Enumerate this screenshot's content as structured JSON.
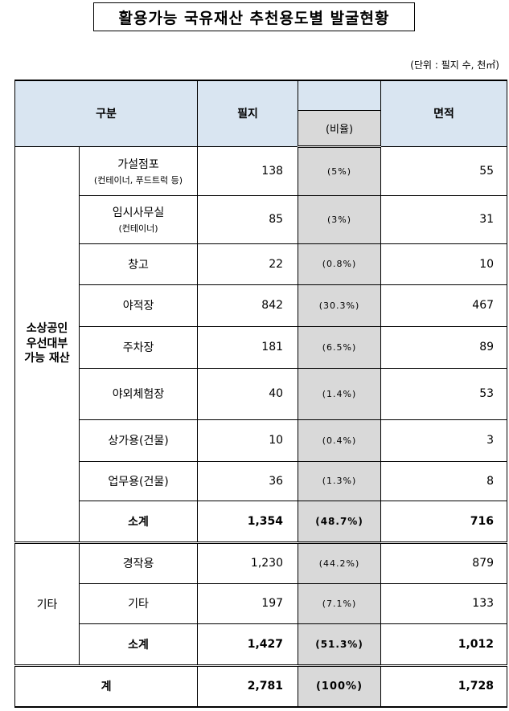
{
  "title": "활용가능 국유재산 추천용도별 발굴현황",
  "unit_note": "(단위 : 필지 수, 천㎡)",
  "headers": {
    "category": "구분",
    "parcels": "필지",
    "ratio": "(비율)",
    "area": "면적"
  },
  "groups": [
    {
      "name": "소상공인 우선대부 가능 재산",
      "name_lines": [
        "소상공인",
        "우선대부",
        "가능 재산"
      ],
      "rows": [
        {
          "label": "가설점포",
          "sublabel": "(컨테이너, 푸드트럭 등)",
          "parcels": "138",
          "ratio": "(5%)",
          "area": "55"
        },
        {
          "label": "임시사무실",
          "sublabel": "(컨테이너)",
          "parcels": "85",
          "ratio": "(3%)",
          "area": "31"
        },
        {
          "label": "창고",
          "sublabel": "",
          "parcels": "22",
          "ratio": "(0.8%)",
          "area": "10"
        },
        {
          "label": "야적장",
          "sublabel": "",
          "parcels": "842",
          "ratio": "(30.3%)",
          "area": "467"
        },
        {
          "label": "주차장",
          "sublabel": "",
          "parcels": "181",
          "ratio": "(6.5%)",
          "area": "89"
        },
        {
          "label": "야외체험장",
          "sublabel": "",
          "parcels": "40",
          "ratio": "(1.4%)",
          "area": "53"
        },
        {
          "label": "상가용(건물)",
          "sublabel": "",
          "parcels": "10",
          "ratio": "(0.4%)",
          "area": "3"
        },
        {
          "label": "업무용(건물)",
          "sublabel": "",
          "parcels": "36",
          "ratio": "(1.3%)",
          "area": "8"
        }
      ],
      "subtotal": {
        "label": "소계",
        "parcels": "1,354",
        "ratio": "(48.7%)",
        "area": "716"
      }
    },
    {
      "name": "기타",
      "rows": [
        {
          "label": "경작용",
          "parcels": "1,230",
          "ratio": "(44.2%)",
          "area": "879"
        },
        {
          "label": "기타",
          "parcels": "197",
          "ratio": "(7.1%)",
          "area": "133"
        }
      ],
      "subtotal": {
        "label": "소계",
        "parcels": "1,427",
        "ratio": "(51.3%)",
        "area": "1,012"
      }
    }
  ],
  "total": {
    "label": "계",
    "parcels": "2,781",
    "ratio": "(100%)",
    "area": "1,728"
  }
}
